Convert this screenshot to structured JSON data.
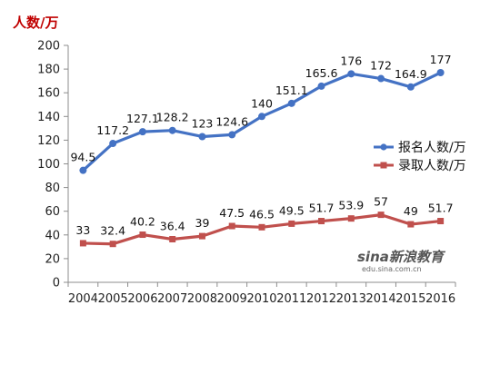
{
  "chart_data": {
    "type": "line",
    "unit_label": "人数/万",
    "x": [
      "2004",
      "2005",
      "2006",
      "2007",
      "2008",
      "2009",
      "2010",
      "2011",
      "2012",
      "2013",
      "2014",
      "2015",
      "2016"
    ],
    "ylim": [
      0,
      200
    ],
    "yticks": [
      "0",
      "20",
      "40",
      "60",
      "80",
      "100",
      "120",
      "140",
      "160",
      "180",
      "200"
    ],
    "grid": false,
    "legend_position": "right",
    "series": [
      {
        "name": "报名人数/万",
        "color": "#4472c4",
        "values": [
          94.5,
          117.2,
          127.1,
          128.2,
          123,
          124.6,
          140,
          151.1,
          165.6,
          176,
          172,
          164.9,
          177
        ],
        "labels": [
          "94.5",
          "117.2",
          "127.1",
          "128.2",
          "123",
          "124.6",
          "140",
          "151.1",
          "165.6",
          "176",
          "172",
          "164.9",
          "177"
        ]
      },
      {
        "name": "录取人数/万",
        "color": "#c0504d",
        "values": [
          33,
          32.4,
          40.2,
          36.4,
          39,
          47.5,
          46.5,
          49.5,
          51.7,
          53.9,
          57,
          49,
          51.7
        ],
        "labels": [
          "33",
          "32.4",
          "40.2",
          "36.4",
          "39",
          "47.5",
          "46.5",
          "49.5",
          "51.7",
          "53.9",
          "57",
          "49",
          "51.7"
        ]
      }
    ]
  },
  "watermark": {
    "logo_text": "sina新浪教育",
    "url_text": "edu.sina.com.cn"
  }
}
